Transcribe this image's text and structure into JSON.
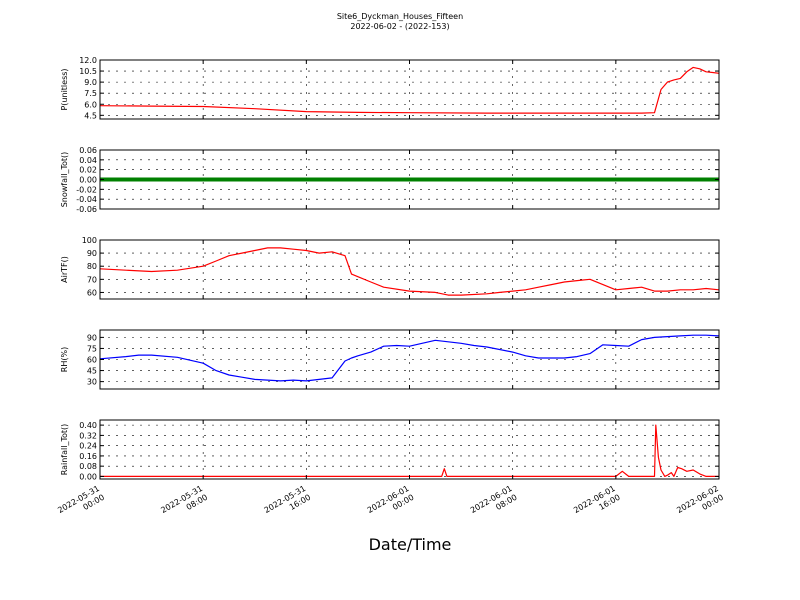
{
  "figure": {
    "title_line1": "Site6_Dyckman_Houses_Fifteen",
    "title_line2": "2022-06-02 - (2022-153)",
    "xlabel": "Date/Time"
  },
  "chart_data": [
    {
      "type": "line",
      "ylabel": "P(unitless)",
      "ylim": [
        4.0,
        12.0
      ],
      "yticks": [
        "12.0",
        "10.5",
        "9.0",
        "7.5",
        "6.0",
        "4.5"
      ],
      "ytick_values": [
        12.0,
        10.5,
        9.0,
        7.5,
        6.0,
        4.5
      ],
      "xticks": [
        "2022-05-31\n00:00",
        "2022-05-31\n08:00",
        "2022-05-31\n16:00",
        "2022-06-01\n00:00",
        "2022-06-01\n08:00",
        "2022-06-01\n16:00",
        "2022-06-02\n00:00"
      ],
      "xlim_hours": [
        0,
        48
      ],
      "grid": true,
      "series": [
        {
          "color": "#ff0000",
          "x": [
            0,
            4,
            8,
            12,
            16,
            20,
            24,
            30,
            36,
            40,
            42,
            43,
            43.5,
            44,
            44.5,
            45,
            45.5,
            46,
            46.5,
            47,
            47.5,
            48
          ],
          "y": [
            5.8,
            5.75,
            5.7,
            5.4,
            5.0,
            4.9,
            4.85,
            4.8,
            4.8,
            4.8,
            4.8,
            4.85,
            8.0,
            9.0,
            9.3,
            9.5,
            10.4,
            11.0,
            10.8,
            10.4,
            10.3,
            10.2
          ]
        }
      ]
    },
    {
      "type": "line",
      "ylabel": "Snowfall_Tot()",
      "ylim": [
        -0.06,
        0.06
      ],
      "yticks": [
        "0.06",
        "0.04",
        "0.02",
        "0.00",
        "-0.02",
        "-0.04",
        "-0.06"
      ],
      "ytick_values": [
        0.06,
        0.04,
        0.02,
        0.0,
        -0.02,
        -0.04,
        -0.06
      ],
      "xlim_hours": [
        0,
        48
      ],
      "grid": true,
      "series": [
        {
          "color": "#008000",
          "x": [
            0,
            48
          ],
          "y": [
            0.0,
            0.0
          ]
        }
      ]
    },
    {
      "type": "line",
      "ylabel": "AirTF()",
      "ylim": [
        55,
        100
      ],
      "yticks": [
        "100",
        "90",
        "80",
        "70",
        "60"
      ],
      "ytick_values": [
        100,
        90,
        80,
        70,
        60
      ],
      "xlim_hours": [
        0,
        48
      ],
      "grid": true,
      "series": [
        {
          "color": "#ff0000",
          "x": [
            0,
            2,
            4,
            6,
            8,
            9,
            10,
            11,
            12,
            13,
            14,
            15,
            16,
            17,
            18,
            19,
            19.5,
            20,
            21,
            22,
            24,
            26,
            27,
            28,
            30,
            31,
            32,
            33,
            34,
            35,
            36,
            37,
            38,
            39,
            40,
            41,
            42,
            43,
            44,
            45,
            46,
            47,
            48
          ],
          "y": [
            78,
            77,
            76,
            77,
            80,
            84,
            88,
            90,
            92,
            94,
            94,
            93,
            92,
            90,
            91,
            88,
            74,
            72,
            68,
            64,
            61,
            60,
            58,
            58,
            59,
            60,
            61,
            62,
            64,
            66,
            68,
            69,
            70,
            66,
            62,
            63,
            64,
            61,
            61,
            62,
            62,
            63,
            62
          ]
        }
      ]
    },
    {
      "type": "line",
      "ylabel": "RH(%)",
      "ylim": [
        20,
        100
      ],
      "yticks": [
        "90",
        "75",
        "60",
        "45",
        "30"
      ],
      "ytick_values": [
        90,
        75,
        60,
        45,
        30
      ],
      "xlim_hours": [
        0,
        48
      ],
      "grid": true,
      "series": [
        {
          "color": "#0000ff",
          "x": [
            0,
            2,
            3,
            4,
            6,
            8,
            9,
            10,
            11,
            12,
            13,
            14,
            15,
            16,
            17,
            18,
            19,
            19.5,
            20,
            21,
            22,
            23,
            24,
            26,
            27,
            28,
            29,
            30,
            32,
            33,
            34,
            35,
            36,
            37,
            38,
            39,
            40,
            41,
            42,
            43,
            44,
            45,
            46,
            47,
            48
          ],
          "y": [
            61,
            64,
            66,
            66,
            63,
            55,
            45,
            39,
            36,
            33,
            32,
            31,
            32,
            31,
            33,
            35,
            58,
            62,
            65,
            70,
            78,
            79,
            78,
            86,
            84,
            82,
            79,
            77,
            70,
            65,
            62,
            62,
            62,
            64,
            68,
            80,
            79,
            78,
            87,
            90,
            91,
            92,
            93,
            93,
            92
          ]
        }
      ]
    },
    {
      "type": "line",
      "ylabel": "Rainfall_Tot()",
      "ylim": [
        -0.02,
        0.44
      ],
      "yticks": [
        "0.40",
        "0.32",
        "0.24",
        "0.16",
        "0.08",
        "0.00"
      ],
      "ytick_values": [
        0.4,
        0.32,
        0.24,
        0.16,
        0.08,
        0.0
      ],
      "xlim_hours": [
        0,
        48
      ],
      "grid": true,
      "series": [
        {
          "color": "#ff0000",
          "x": [
            0,
            26.5,
            26.7,
            26.9,
            40,
            40.5,
            41,
            43,
            43.1,
            43.3,
            43.5,
            43.8,
            44,
            44.3,
            44.5,
            44.8,
            45.1,
            45.5,
            46,
            46.5,
            47,
            48
          ],
          "y": [
            0,
            0,
            0.06,
            0,
            0,
            0.04,
            0,
            0,
            0.4,
            0.15,
            0.05,
            0,
            0.01,
            0.03,
            0,
            0.07,
            0.06,
            0.04,
            0.05,
            0.02,
            0,
            0
          ]
        }
      ]
    }
  ]
}
